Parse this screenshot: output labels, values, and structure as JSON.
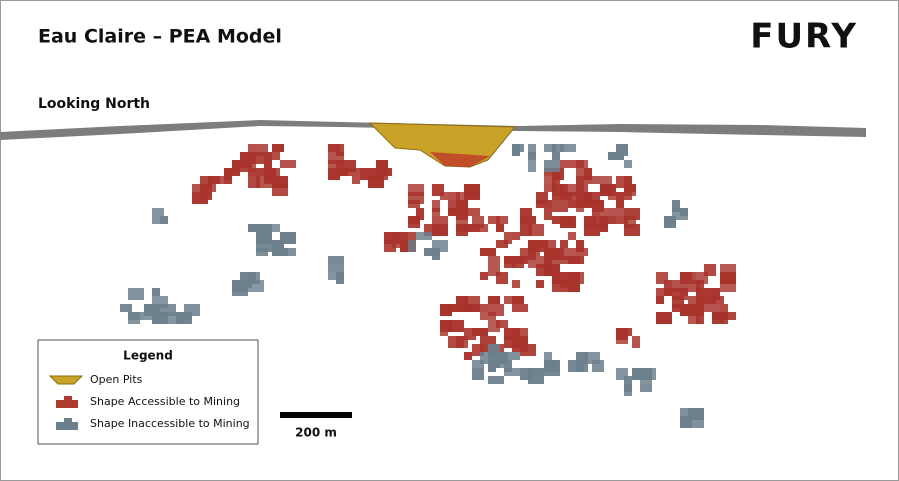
{
  "header": {
    "title": "Eau Claire – PEA Model",
    "logo": "FURY"
  },
  "view_label": "Looking North",
  "legend": {
    "title": "Legend",
    "items": [
      "Open Pits",
      "Shape Accessible to Mining",
      "Shape Inaccessible to Mining"
    ]
  },
  "scale_bar": {
    "label": "200 m"
  }
}
